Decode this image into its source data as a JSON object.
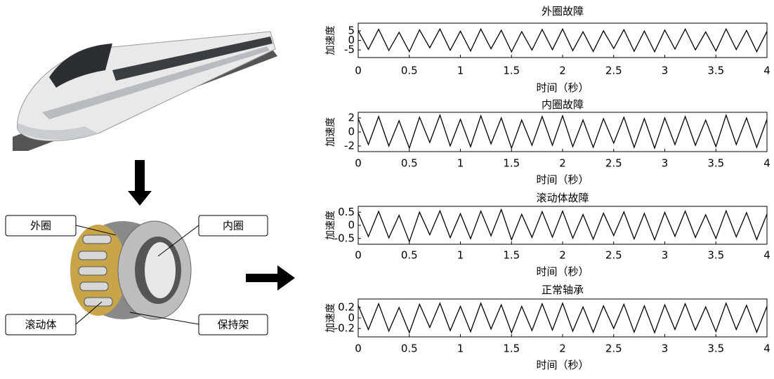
{
  "diagram": {
    "labels": [
      "外圈",
      "内圈",
      "滚动体",
      "保持架"
    ]
  },
  "chart_data": [
    {
      "type": "line",
      "title": "外圈故障",
      "xlabel": "时间（秒）",
      "ylabel": "加速度",
      "color": "#000000",
      "xlim": [
        0,
        4
      ],
      "xticks": [
        0,
        0.5,
        1,
        1.5,
        2,
        2.5,
        3,
        3.5,
        4
      ],
      "ylim": [
        -9,
        9
      ],
      "yticks": [
        -5,
        0,
        5
      ],
      "x": [
        0,
        0.1,
        0.2,
        0.3,
        0.4,
        0.5,
        0.6,
        0.7,
        0.8,
        0.9,
        1,
        1.1,
        1.2,
        1.3,
        1.4,
        1.5,
        1.6,
        1.7,
        1.8,
        1.9,
        2,
        2.1,
        2.2,
        2.3,
        2.4,
        2.5,
        2.6,
        2.7,
        2.8,
        2.9,
        3,
        3.1,
        3.2,
        3.3,
        3.4,
        3.5,
        3.6,
        3.7,
        3.8,
        3.9,
        4
      ],
      "values": [
        5.1,
        -4.7,
        5.8,
        -5.3,
        4.2,
        -5.9,
        5.5,
        -3.9,
        6.0,
        -5.2,
        4.8,
        -5.6,
        5.9,
        -4.4,
        5.3,
        -6.0,
        4.6,
        -5.1,
        5.7,
        -4.9,
        5.9,
        -5.4,
        4.5,
        -5.8,
        5.0,
        -4.3,
        5.6,
        -5.7,
        4.9,
        -6.0,
        5.4,
        -4.6,
        5.9,
        -5.0,
        4.4,
        -5.5,
        6.0,
        -4.8,
        5.2,
        -5.9,
        4.7
      ]
    },
    {
      "type": "line",
      "title": "内圈故障",
      "xlabel": "时间（秒）",
      "ylabel": "加速度",
      "color": "#000000",
      "xlim": [
        0,
        4
      ],
      "xticks": [
        0,
        0.5,
        1,
        1.5,
        2,
        2.5,
        3,
        3.5,
        4
      ],
      "ylim": [
        -2.8,
        2.8
      ],
      "yticks": [
        -2,
        0,
        2
      ],
      "x": [
        0,
        0.1,
        0.2,
        0.3,
        0.4,
        0.5,
        0.6,
        0.7,
        0.8,
        0.9,
        1,
        1.1,
        1.2,
        1.3,
        1.4,
        1.5,
        1.6,
        1.7,
        1.8,
        1.9,
        2,
        2.1,
        2.2,
        2.3,
        2.4,
        2.5,
        2.6,
        2.7,
        2.8,
        2.9,
        3,
        3.1,
        3.2,
        3.3,
        3.4,
        3.5,
        3.6,
        3.7,
        3.8,
        3.9,
        4
      ],
      "values": [
        1.9,
        -1.8,
        2.2,
        -2.0,
        1.6,
        -2.3,
        2.1,
        -1.5,
        2.4,
        -2.0,
        1.8,
        -2.1,
        2.3,
        -1.7,
        2.0,
        -2.3,
        1.7,
        -1.9,
        2.2,
        -1.9,
        2.3,
        -2.1,
        1.7,
        -2.2,
        1.9,
        -1.6,
        2.1,
        -2.2,
        1.9,
        -2.3,
        2.0,
        -1.8,
        2.2,
        -1.9,
        1.7,
        -2.1,
        2.4,
        -1.8,
        2.0,
        -2.2,
        1.8
      ]
    },
    {
      "type": "line",
      "title": "滚动体故障",
      "xlabel": "时间（秒）",
      "ylabel": "加速度",
      "color": "#000000",
      "xlim": [
        0,
        4
      ],
      "xticks": [
        0,
        0.5,
        1,
        1.5,
        2,
        2.5,
        3,
        3.5,
        4
      ],
      "ylim": [
        -0.72,
        0.72
      ],
      "yticks": [
        -0.5,
        0,
        0.5
      ],
      "x": [
        0,
        0.1,
        0.2,
        0.3,
        0.4,
        0.5,
        0.6,
        0.7,
        0.8,
        0.9,
        1,
        1.1,
        1.2,
        1.3,
        1.4,
        1.5,
        1.6,
        1.7,
        1.8,
        1.9,
        2,
        2.1,
        2.2,
        2.3,
        2.4,
        2.5,
        2.6,
        2.7,
        2.8,
        2.9,
        3,
        3.1,
        3.2,
        3.3,
        3.4,
        3.5,
        3.6,
        3.7,
        3.8,
        3.9,
        4
      ],
      "values": [
        0.47,
        -0.43,
        0.53,
        -0.48,
        0.38,
        -0.62,
        0.5,
        -0.36,
        0.55,
        -0.47,
        0.44,
        -0.51,
        0.54,
        -0.4,
        0.6,
        -0.55,
        0.42,
        -0.46,
        0.52,
        -0.45,
        0.54,
        -0.49,
        0.41,
        -0.53,
        0.46,
        -0.39,
        0.51,
        -0.52,
        0.45,
        -0.55,
        0.49,
        -0.42,
        0.54,
        -0.46,
        0.4,
        -0.5,
        0.55,
        -0.44,
        0.48,
        -0.54,
        0.43
      ]
    },
    {
      "type": "line",
      "title": "正常轴承",
      "xlabel": "时间（秒）",
      "ylabel": "加速度",
      "color": "#000000",
      "xlim": [
        0,
        4
      ],
      "xticks": [
        0,
        0.5,
        1,
        1.5,
        2,
        2.5,
        3,
        3.5,
        4
      ],
      "ylim": [
        -0.36,
        0.36
      ],
      "yticks": [
        -0.2,
        0,
        0.2
      ],
      "x": [
        0,
        0.1,
        0.2,
        0.3,
        0.4,
        0.5,
        0.6,
        0.7,
        0.8,
        0.9,
        1,
        1.1,
        1.2,
        1.3,
        1.4,
        1.5,
        1.6,
        1.7,
        1.8,
        1.9,
        2,
        2.1,
        2.2,
        2.3,
        2.4,
        2.5,
        2.6,
        2.7,
        2.8,
        2.9,
        3,
        3.1,
        3.2,
        3.3,
        3.4,
        3.5,
        3.6,
        3.7,
        3.8,
        3.9,
        4
      ],
      "values": [
        0.24,
        -0.22,
        0.27,
        -0.25,
        0.2,
        -0.28,
        0.26,
        -0.18,
        0.28,
        -0.24,
        0.22,
        -0.26,
        0.28,
        -0.21,
        0.25,
        -0.28,
        0.22,
        -0.24,
        0.27,
        -0.23,
        0.28,
        -0.25,
        0.21,
        -0.27,
        0.23,
        -0.2,
        0.26,
        -0.27,
        0.23,
        -0.28,
        0.25,
        -0.22,
        0.27,
        -0.23,
        0.21,
        -0.26,
        0.28,
        -0.22,
        0.24,
        -0.27,
        0.22
      ]
    }
  ]
}
